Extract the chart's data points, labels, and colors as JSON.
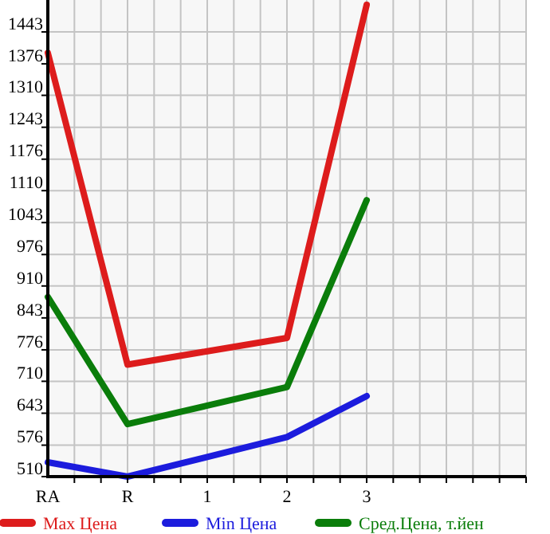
{
  "chart_data": {
    "type": "line",
    "categories": [
      "RA",
      "R",
      "1",
      "2",
      "3",
      null
    ],
    "series": [
      {
        "name": "Max Цена",
        "color": "#dd1c1c",
        "values": [
          1399,
          745,
          773,
          801,
          1500,
          null
        ]
      },
      {
        "name": "Min Цена",
        "color": "#1c1cdd",
        "values": [
          540,
          510,
          551,
          593,
          679,
          null
        ]
      },
      {
        "name": "Сред.Цена, т.йен",
        "color": "#0a7d0a",
        "values": [
          887,
          620,
          659,
          698,
          1090,
          null
        ]
      }
    ],
    "ylim": [
      510,
      1510
    ],
    "yticks": [
      510,
      576,
      643,
      710,
      776,
      843,
      910,
      976,
      1043,
      1110,
      1176,
      1243,
      1310,
      1376,
      1443
    ],
    "grid": true,
    "legend": "bottom",
    "line_style": "solid"
  }
}
